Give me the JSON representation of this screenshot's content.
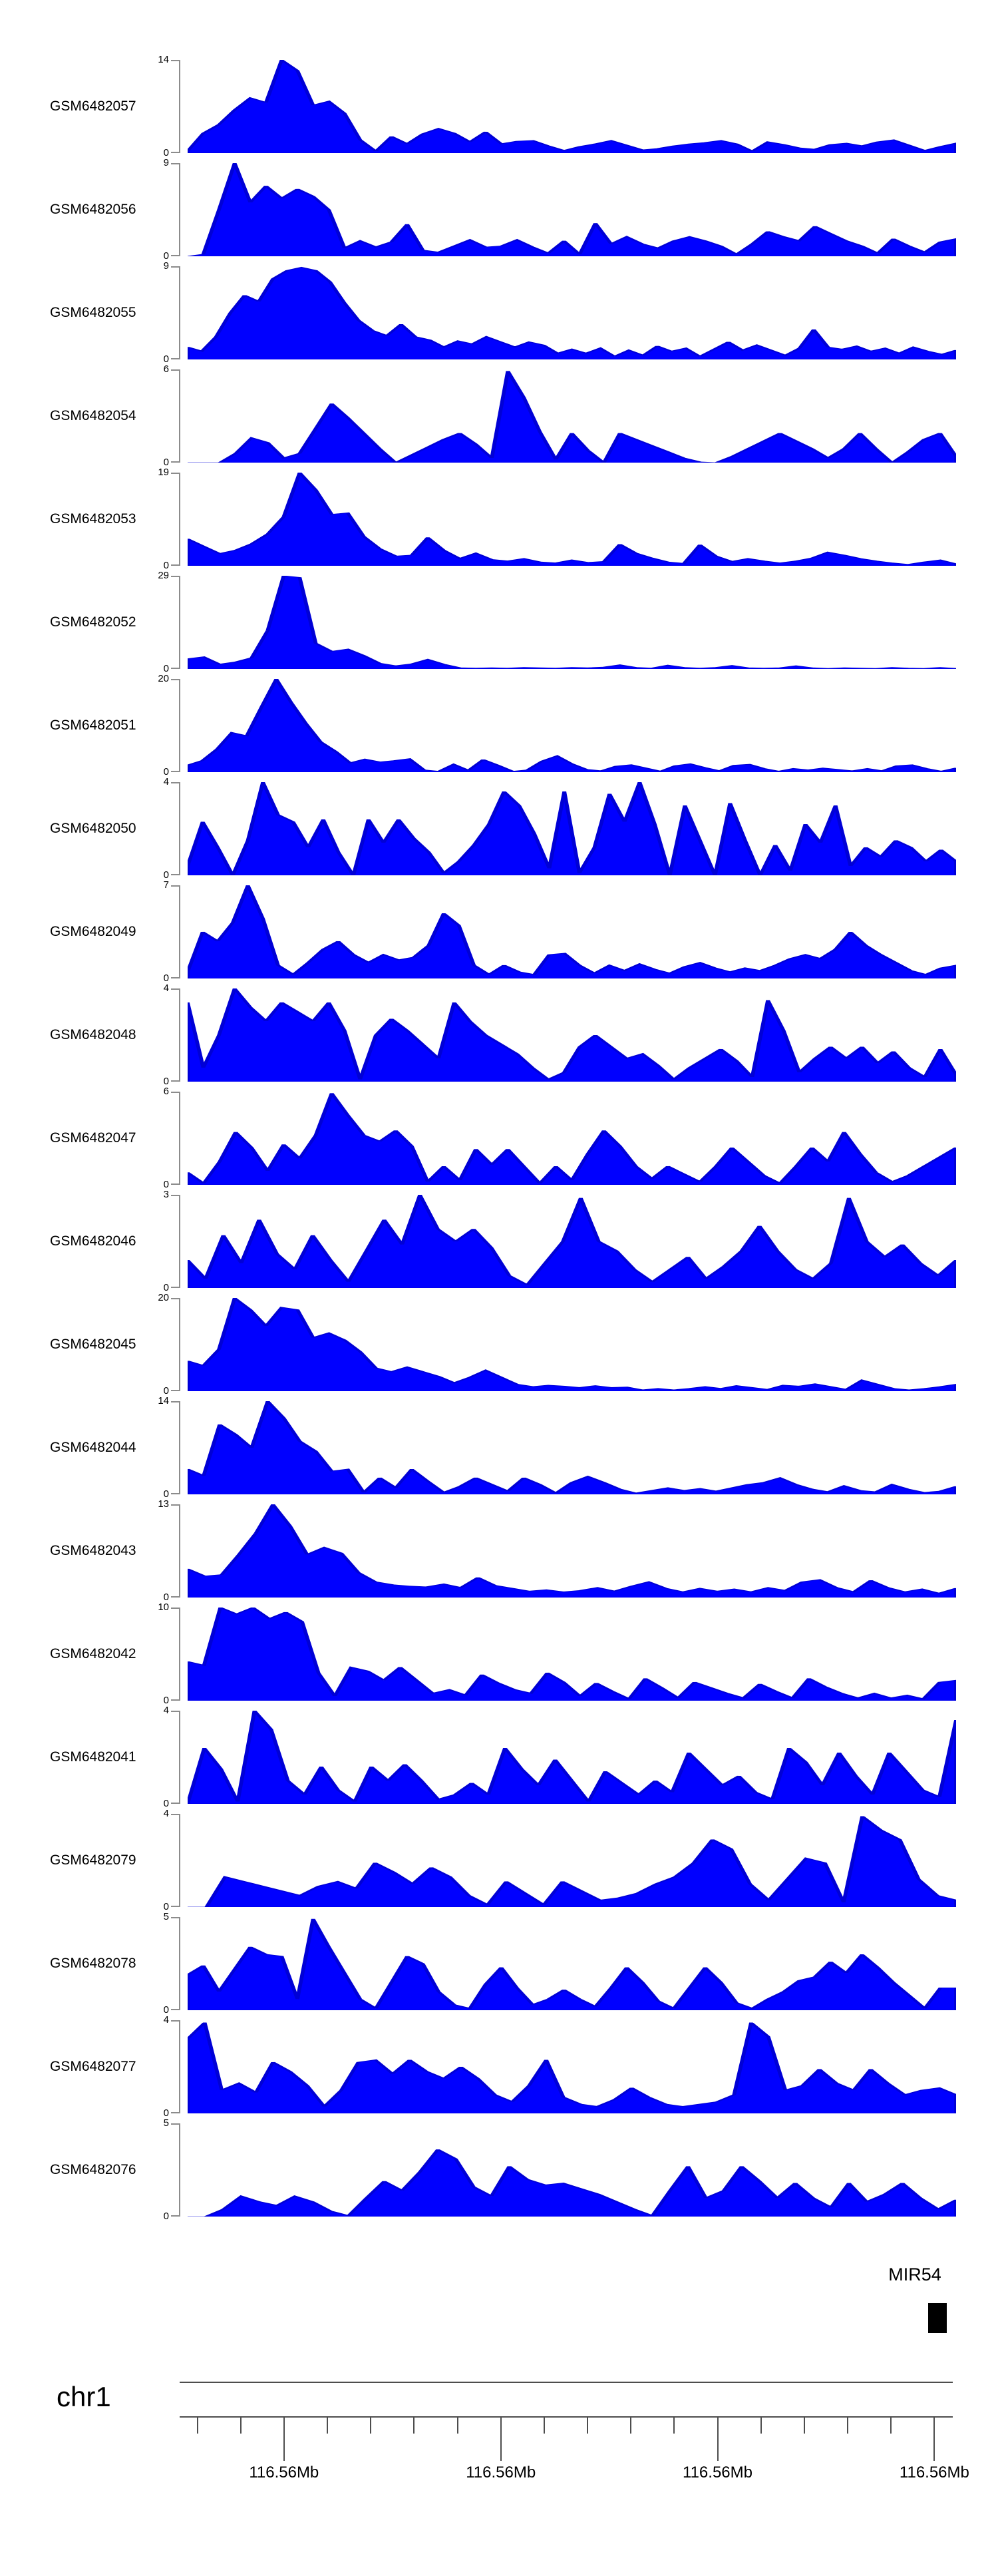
{
  "colors": {
    "signal": "#0000ff",
    "signal_edge": "#0000d6",
    "axis_gray": "#8c8c8c",
    "ruler_line": "#4d4d4d",
    "text": "#000000",
    "gene_box": "#000000"
  },
  "annotation": {
    "gene_label": "MIR54"
  },
  "genome_axis": {
    "chromosome_label": "chr1",
    "tick_labels": [
      "116.56Mb",
      "116.56Mb",
      "116.56Mb",
      "116.56Mb"
    ],
    "zero_label": "0"
  },
  "chart_data": {
    "type": "area",
    "layout": "stacked genome-browser coverage tracks, shared x-range",
    "x_range": "chr1 ~116.56Mb window",
    "xlabel": "chr1",
    "grid": "off",
    "x_tick_labels": [
      "116.56Mb",
      "116.56Mb",
      "116.56Mb",
      "116.56Mb"
    ],
    "gene_annotation": "MIR54",
    "tracks": [
      {
        "name": "GSM6482057",
        "ymax": 14,
        "values": [
          0.3,
          3,
          4.3,
          6.5,
          8.3,
          7.6,
          14,
          12.4,
          7.2,
          7.8,
          6,
          2,
          0.3,
          2.5,
          1.4,
          2.9,
          3.7,
          3,
          1.7,
          3.2,
          1.4,
          1.8,
          1.9,
          1.1,
          0.4,
          1,
          1.4,
          1.9,
          1.2,
          0.5,
          0.7,
          1.1,
          1.4,
          1.6,
          1.9,
          1.4,
          0.3,
          1.7,
          1.3,
          0.8,
          0.6,
          1.3,
          1.5,
          1.1,
          1.7,
          2,
          1.2,
          0.4,
          1,
          1.5
        ]
      },
      {
        "name": "GSM6482056",
        "ymax": 9,
        "values": [
          0,
          0.2,
          4.5,
          9,
          5.2,
          6.8,
          5.6,
          6.5,
          5.8,
          4.5,
          0.8,
          1.5,
          0.9,
          1.4,
          3.1,
          0.6,
          0.4,
          1,
          1.6,
          0.9,
          1,
          1.6,
          0.9,
          0.3,
          1.5,
          0.2,
          3.2,
          1.2,
          1.9,
          1.2,
          0.8,
          1.5,
          1.9,
          1.5,
          1,
          0.2,
          1.2,
          2.4,
          1.9,
          1.5,
          2.9,
          2.2,
          1.5,
          1,
          0.3,
          1.7,
          1,
          0.4,
          1.4,
          1.7
        ]
      },
      {
        "name": "GSM6482055",
        "ymax": 9,
        "values": [
          1.2,
          0.8,
          2.2,
          4.5,
          6.2,
          5.6,
          7.8,
          8.6,
          8.9,
          8.6,
          7.5,
          5.5,
          3.8,
          2.8,
          2.3,
          3.4,
          2.2,
          1.9,
          1.2,
          1.8,
          1.5,
          2.2,
          1.7,
          1.2,
          1.7,
          1.4,
          0.6,
          1,
          0.6,
          1.1,
          0.3,
          0.9,
          0.4,
          1.3,
          0.8,
          1.1,
          0.3,
          1,
          1.7,
          0.9,
          1.4,
          0.9,
          0.4,
          1.1,
          2.9,
          1.2,
          1,
          1.3,
          0.8,
          1.1,
          0.6,
          1.2,
          0.8,
          0.5,
          0.9
        ]
      },
      {
        "name": "GSM6482054",
        "ymax": 6,
        "values": [
          0,
          0,
          0,
          0.6,
          1.6,
          1.3,
          0.3,
          0.6,
          2.2,
          3.8,
          2.9,
          1.9,
          0.9,
          0,
          0.5,
          1,
          1.5,
          1.9,
          1.2,
          0.3,
          5.9,
          4.2,
          2,
          0.2,
          1.9,
          0.8,
          0,
          1.9,
          1.5,
          1.1,
          0.7,
          0.3,
          0.05,
          0,
          0.4,
          0.9,
          1.4,
          1.9,
          1.4,
          0.9,
          0.3,
          0.9,
          1.9,
          0.9,
          0,
          0.7,
          1.5,
          1.9,
          0.4
        ]
      },
      {
        "name": "GSM6482053",
        "ymax": 19,
        "values": [
          5.5,
          4,
          2.5,
          3.2,
          4.5,
          6.5,
          10,
          19,
          15.5,
          10.5,
          10.8,
          6,
          3.5,
          2,
          2.2,
          5.8,
          3.2,
          1.5,
          2.6,
          1.3,
          1,
          1.5,
          0.8,
          0.6,
          1.2,
          0.7,
          0.9,
          4.4,
          2.6,
          1.6,
          0.8,
          0.5,
          4.3,
          2,
          0.9,
          1.5,
          1,
          0.6,
          1,
          1.6,
          2.8,
          2.2,
          1.5,
          1,
          0.6,
          0.3,
          0.8,
          1.2,
          0.4
        ]
      },
      {
        "name": "GSM6482052",
        "ymax": 29,
        "values": [
          3.2,
          3.8,
          1.5,
          2.2,
          3.5,
          12,
          29,
          28.5,
          8,
          5.5,
          6.2,
          4.2,
          1.8,
          1,
          1.6,
          3,
          1.5,
          0.4,
          0.3,
          0.4,
          0.3,
          0.5,
          0.4,
          0.3,
          0.5,
          0.4,
          0.6,
          1.3,
          0.5,
          0.3,
          1.2,
          0.5,
          0.3,
          0.5,
          1.1,
          0.4,
          0.3,
          0.4,
          1,
          0.4,
          0.2,
          0.4,
          0.3,
          0.2,
          0.5,
          0.3,
          0.2,
          0.5,
          0.2
        ]
      },
      {
        "name": "GSM6482051",
        "ymax": 20,
        "values": [
          1.5,
          2.5,
          5,
          8.5,
          7.8,
          14,
          20,
          15,
          10.5,
          6.5,
          4.5,
          2,
          2.8,
          2.2,
          2.5,
          2.9,
          0.5,
          0.2,
          1.7,
          0.4,
          2.7,
          1.5,
          0.2,
          0.5,
          2.4,
          3.5,
          1.8,
          0.6,
          0.3,
          1.3,
          1.6,
          0.9,
          0.2,
          1.4,
          1.8,
          1,
          0.3,
          1.5,
          1.7,
          0.8,
          0.2,
          0.8,
          0.5,
          0.9,
          0.6,
          0.3,
          0.8,
          0.3,
          1.4,
          1.6,
          0.8,
          0.2,
          0.9
        ]
      },
      {
        "name": "GSM6482050",
        "ymax": 4,
        "values": [
          0.4,
          2.3,
          1.2,
          0,
          1.5,
          4,
          2.6,
          2.3,
          1.2,
          2.4,
          1,
          0,
          2.4,
          1.4,
          2.4,
          1.6,
          1,
          0.1,
          0.6,
          1.3,
          2.2,
          3.6,
          3,
          1.8,
          0.3,
          3.6,
          0.1,
          1.2,
          3.5,
          2.3,
          4,
          2.2,
          0,
          3,
          1.5,
          0,
          3.1,
          1.5,
          0,
          1.3,
          0.2,
          2.2,
          1.4,
          3,
          0.4,
          1.2,
          0.8,
          1.5,
          1.2,
          0.6,
          1.1,
          0.6
        ]
      },
      {
        "name": "GSM6482049",
        "ymax": 7,
        "values": [
          0.5,
          3.5,
          2.8,
          4.2,
          7,
          4.5,
          1,
          0.3,
          1.2,
          2.2,
          2.8,
          1.8,
          1.2,
          1.8,
          1.4,
          1.6,
          2.5,
          4.9,
          4,
          1,
          0.3,
          1,
          0.5,
          0.3,
          1.8,
          1.9,
          1,
          0.4,
          1,
          0.6,
          1.1,
          0.7,
          0.4,
          0.9,
          1.2,
          0.8,
          0.5,
          0.8,
          0.6,
          1,
          1.5,
          1.8,
          1.5,
          2.2,
          3.5,
          2.5,
          1.8,
          1.2,
          0.6,
          0.3,
          0.8,
          1
        ]
      },
      {
        "name": "GSM6482048",
        "ymax": 4,
        "values": [
          3.4,
          0.6,
          2,
          4,
          3.2,
          2.6,
          3.4,
          3,
          2.6,
          3.4,
          2.2,
          0.1,
          2,
          2.7,
          2.2,
          1.6,
          1,
          3.4,
          2.6,
          2,
          1.6,
          1.2,
          0.6,
          0.1,
          0.4,
          1.5,
          2,
          1.5,
          1,
          1.2,
          0.7,
          0.1,
          0.6,
          1,
          1.4,
          0.9,
          0.2,
          3.5,
          2.2,
          0.4,
          1,
          1.5,
          1,
          1.5,
          0.8,
          1.3,
          0.6,
          0.2,
          1.4,
          0.3
        ]
      },
      {
        "name": "GSM6482047",
        "ymax": 6,
        "values": [
          0.8,
          0.1,
          1.5,
          3.4,
          2.4,
          0.9,
          2.6,
          1.7,
          3.2,
          5.9,
          4.5,
          3.2,
          2.8,
          3.5,
          2.5,
          0.2,
          1.2,
          0.3,
          2.3,
          1.3,
          2.3,
          1.2,
          0.1,
          1.2,
          0.3,
          2,
          3.5,
          2.5,
          1.2,
          0.4,
          1.2,
          0.7,
          0.2,
          1.2,
          2.4,
          1.5,
          0.6,
          0.1,
          1.2,
          2.4,
          1.5,
          3.4,
          2,
          0.8,
          0.2,
          0.6,
          1.2,
          1.8,
          2.4
        ]
      },
      {
        "name": "GSM6482046",
        "ymax": 3,
        "values": [
          0.9,
          0.3,
          1.7,
          0.8,
          2.2,
          1.1,
          0.6,
          1.7,
          0.9,
          0.2,
          1.2,
          2.2,
          1.4,
          3,
          1.9,
          1.5,
          1.9,
          1.3,
          0.4,
          0.1,
          0.8,
          1.5,
          2.9,
          1.5,
          1.2,
          0.6,
          0.2,
          0.6,
          1,
          0.3,
          0.7,
          1.2,
          2,
          1.2,
          0.6,
          0.3,
          0.8,
          2.9,
          1.5,
          1,
          1.4,
          0.8,
          0.4,
          0.9
        ]
      },
      {
        "name": "GSM6482045",
        "ymax": 20,
        "values": [
          6.5,
          5.5,
          9,
          20,
          17.5,
          14,
          18,
          17.5,
          11.5,
          12.5,
          11,
          8.5,
          5,
          4.2,
          5.2,
          4.2,
          3.2,
          1.8,
          3,
          4.5,
          3,
          1.5,
          1,
          1.3,
          1.1,
          0.8,
          1.2,
          0.8,
          0.9,
          0.3,
          0.6,
          0.3,
          0.6,
          1,
          0.6,
          1.2,
          0.8,
          0.4,
          1.3,
          1.1,
          1.6,
          1,
          0.4,
          2.4,
          1.5,
          0.6,
          0.3,
          0.6,
          1,
          1.5
        ]
      },
      {
        "name": "GSM6482044",
        "ymax": 14,
        "values": [
          3.8,
          2.8,
          10.5,
          9,
          7,
          14,
          11.5,
          8,
          6.5,
          3.5,
          3.8,
          0.3,
          2.5,
          1,
          3.8,
          2,
          0.3,
          1.2,
          2.5,
          1.5,
          0.5,
          2.5,
          1.5,
          0.2,
          1.8,
          2.7,
          1.8,
          0.8,
          0.2,
          0.6,
          1,
          0.6,
          0.9,
          0.5,
          1,
          1.5,
          1.8,
          2.5,
          1.5,
          0.8,
          0.4,
          1.3,
          0.6,
          0.4,
          1.5,
          0.8,
          0.3,
          0.5,
          1.2
        ]
      },
      {
        "name": "GSM6482043",
        "ymax": 13,
        "values": [
          4,
          3,
          3.2,
          6,
          9,
          13,
          10,
          6,
          7,
          6.2,
          3.5,
          2.2,
          1.8,
          1.6,
          1.5,
          1.9,
          1.4,
          2.8,
          1.7,
          1.3,
          0.9,
          1.1,
          0.8,
          1,
          1.4,
          0.9,
          1.6,
          2.2,
          1.3,
          0.8,
          1.3,
          0.9,
          1.2,
          0.8,
          1.4,
          1,
          2.2,
          2.5,
          1.4,
          0.8,
          2.4,
          1.4,
          0.8,
          1.2,
          0.6,
          1.3
        ]
      },
      {
        "name": "GSM6482042",
        "ymax": 10,
        "values": [
          4.2,
          3.8,
          10,
          9.3,
          10,
          8.8,
          9.5,
          8.5,
          3,
          0.5,
          3.6,
          3.2,
          2.2,
          3.6,
          2.2,
          0.8,
          1.2,
          0.6,
          2.8,
          1.9,
          1.2,
          0.8,
          3,
          2,
          0.5,
          1.9,
          1,
          0.2,
          2.4,
          1.4,
          0.3,
          2,
          1.4,
          0.8,
          0.3,
          1.8,
          1,
          0.3,
          2.4,
          1.5,
          0.8,
          0.3,
          0.8,
          0.3,
          0.6,
          0.2,
          2,
          2.2
        ]
      },
      {
        "name": "GSM6482041",
        "ymax": 4,
        "values": [
          0,
          2.4,
          1.5,
          0.1,
          4,
          3.2,
          1,
          0.4,
          1.6,
          0.6,
          0.1,
          1.6,
          1,
          1.7,
          1,
          0.2,
          0.4,
          0.9,
          0.4,
          2.4,
          1.5,
          0.8,
          1.9,
          1,
          0.1,
          1.4,
          0.9,
          0.4,
          1,
          0.5,
          2.2,
          1.5,
          0.8,
          1.2,
          0.5,
          0.2,
          2.4,
          1.8,
          0.8,
          2.2,
          1.2,
          0.4,
          2.2,
          1.4,
          0.6,
          0.3,
          3.6
        ]
      },
      {
        "name": "GSM6482079",
        "ymax": 4,
        "values": [
          0,
          0,
          1.3,
          1.1,
          0.9,
          0.7,
          0.5,
          0.9,
          1.1,
          0.8,
          1.9,
          1.5,
          1,
          1.7,
          1.3,
          0.5,
          0.1,
          1.1,
          0.6,
          0.1,
          1.1,
          0.7,
          0.3,
          0.4,
          0.6,
          1,
          1.3,
          1.9,
          2.9,
          2.5,
          1,
          0.3,
          1.2,
          2.1,
          1.9,
          0.2,
          3.9,
          3.3,
          2.9,
          1.2,
          0.5,
          0.3
        ]
      },
      {
        "name": "GSM6482078",
        "ymax": 5,
        "values": [
          1.9,
          2.4,
          1,
          2.2,
          3.4,
          3,
          2.9,
          0.6,
          4.9,
          3.4,
          2,
          0.6,
          0.1,
          1.5,
          2.9,
          2.5,
          1,
          0.3,
          0.1,
          1.4,
          2.3,
          1.2,
          0.3,
          0.6,
          1.1,
          0.6,
          0.2,
          1.2,
          2.3,
          1.5,
          0.5,
          0.1,
          1.2,
          2.3,
          1.5,
          0.4,
          0.1,
          0.6,
          1,
          1.6,
          1.8,
          2.6,
          2,
          3,
          2.3,
          1.5,
          0.8,
          0.1,
          1.2,
          1.2
        ]
      },
      {
        "name": "GSM6482077",
        "ymax": 4,
        "values": [
          3.2,
          3.9,
          1,
          1.3,
          0.9,
          2.2,
          1.8,
          1.2,
          0.3,
          1,
          2.2,
          2.3,
          1.7,
          2.3,
          1.8,
          1.5,
          2,
          1.5,
          0.8,
          0.5,
          1.2,
          2.3,
          0.7,
          0.4,
          0.3,
          0.6,
          1.1,
          0.7,
          0.4,
          0.3,
          0.4,
          0.5,
          0.8,
          3.9,
          3.3,
          1,
          1.2,
          1.9,
          1.3,
          1,
          1.9,
          1.3,
          0.8,
          1,
          1.1,
          0.8
        ]
      },
      {
        "name": "GSM6482076",
        "ymax": 5,
        "values": [
          0,
          0,
          0.4,
          1.1,
          0.8,
          0.6,
          1.1,
          0.8,
          0.3,
          0.05,
          1,
          1.9,
          1.4,
          2.4,
          3.6,
          3.1,
          1.6,
          1.1,
          2.7,
          2,
          1.7,
          1.8,
          1.5,
          1.2,
          0.8,
          0.4,
          0.05,
          1.4,
          2.7,
          1,
          1.4,
          2.7,
          1.9,
          1,
          1.8,
          1,
          0.5,
          1.8,
          0.8,
          1.2,
          1.8,
          1,
          0.4,
          0.9
        ]
      }
    ]
  }
}
